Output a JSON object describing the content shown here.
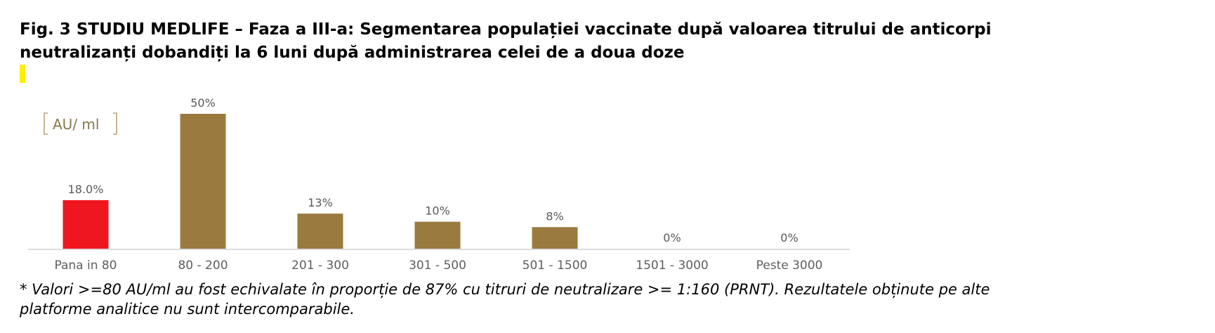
{
  "title_lines": [
    "Fig. 3 STUDIU MEDLIFE – Faza a III-a: Segmentarea populației vaccinate după valoarea titrului de anticorpi",
    "neutralizanți dobandiți la 6 luni după administrarea celei de a doua doze"
  ],
  "footnote_lines": [
    "* Valori >=80 AU/ml au fost echivalate în proporție de 87% cu titruri de neutralizare >= 1:160 (PRNT). Rezultatele obținute pe alte",
    "platforme analitice nu sunt intercomparabile."
  ],
  "chart_data": {
    "type": "bar",
    "unit_label": "AU/ ml",
    "categories": [
      "Pana in 80",
      "80 - 200",
      "201 - 300",
      "301 - 500",
      "501 - 1500",
      "1501 - 3000",
      "Peste 3000"
    ],
    "values": [
      18.0,
      50,
      13,
      10,
      8,
      0,
      0
    ],
    "value_labels": [
      "18.0%",
      "50%",
      "13%",
      "10%",
      "8%",
      "0%",
      "0%"
    ],
    "ylim": [
      0,
      50
    ],
    "grid": false,
    "colors": {
      "highlight": "#ef1620",
      "bar": "#9b7a40",
      "axis": "#d2d2d2"
    },
    "highlight_index": 0
  }
}
